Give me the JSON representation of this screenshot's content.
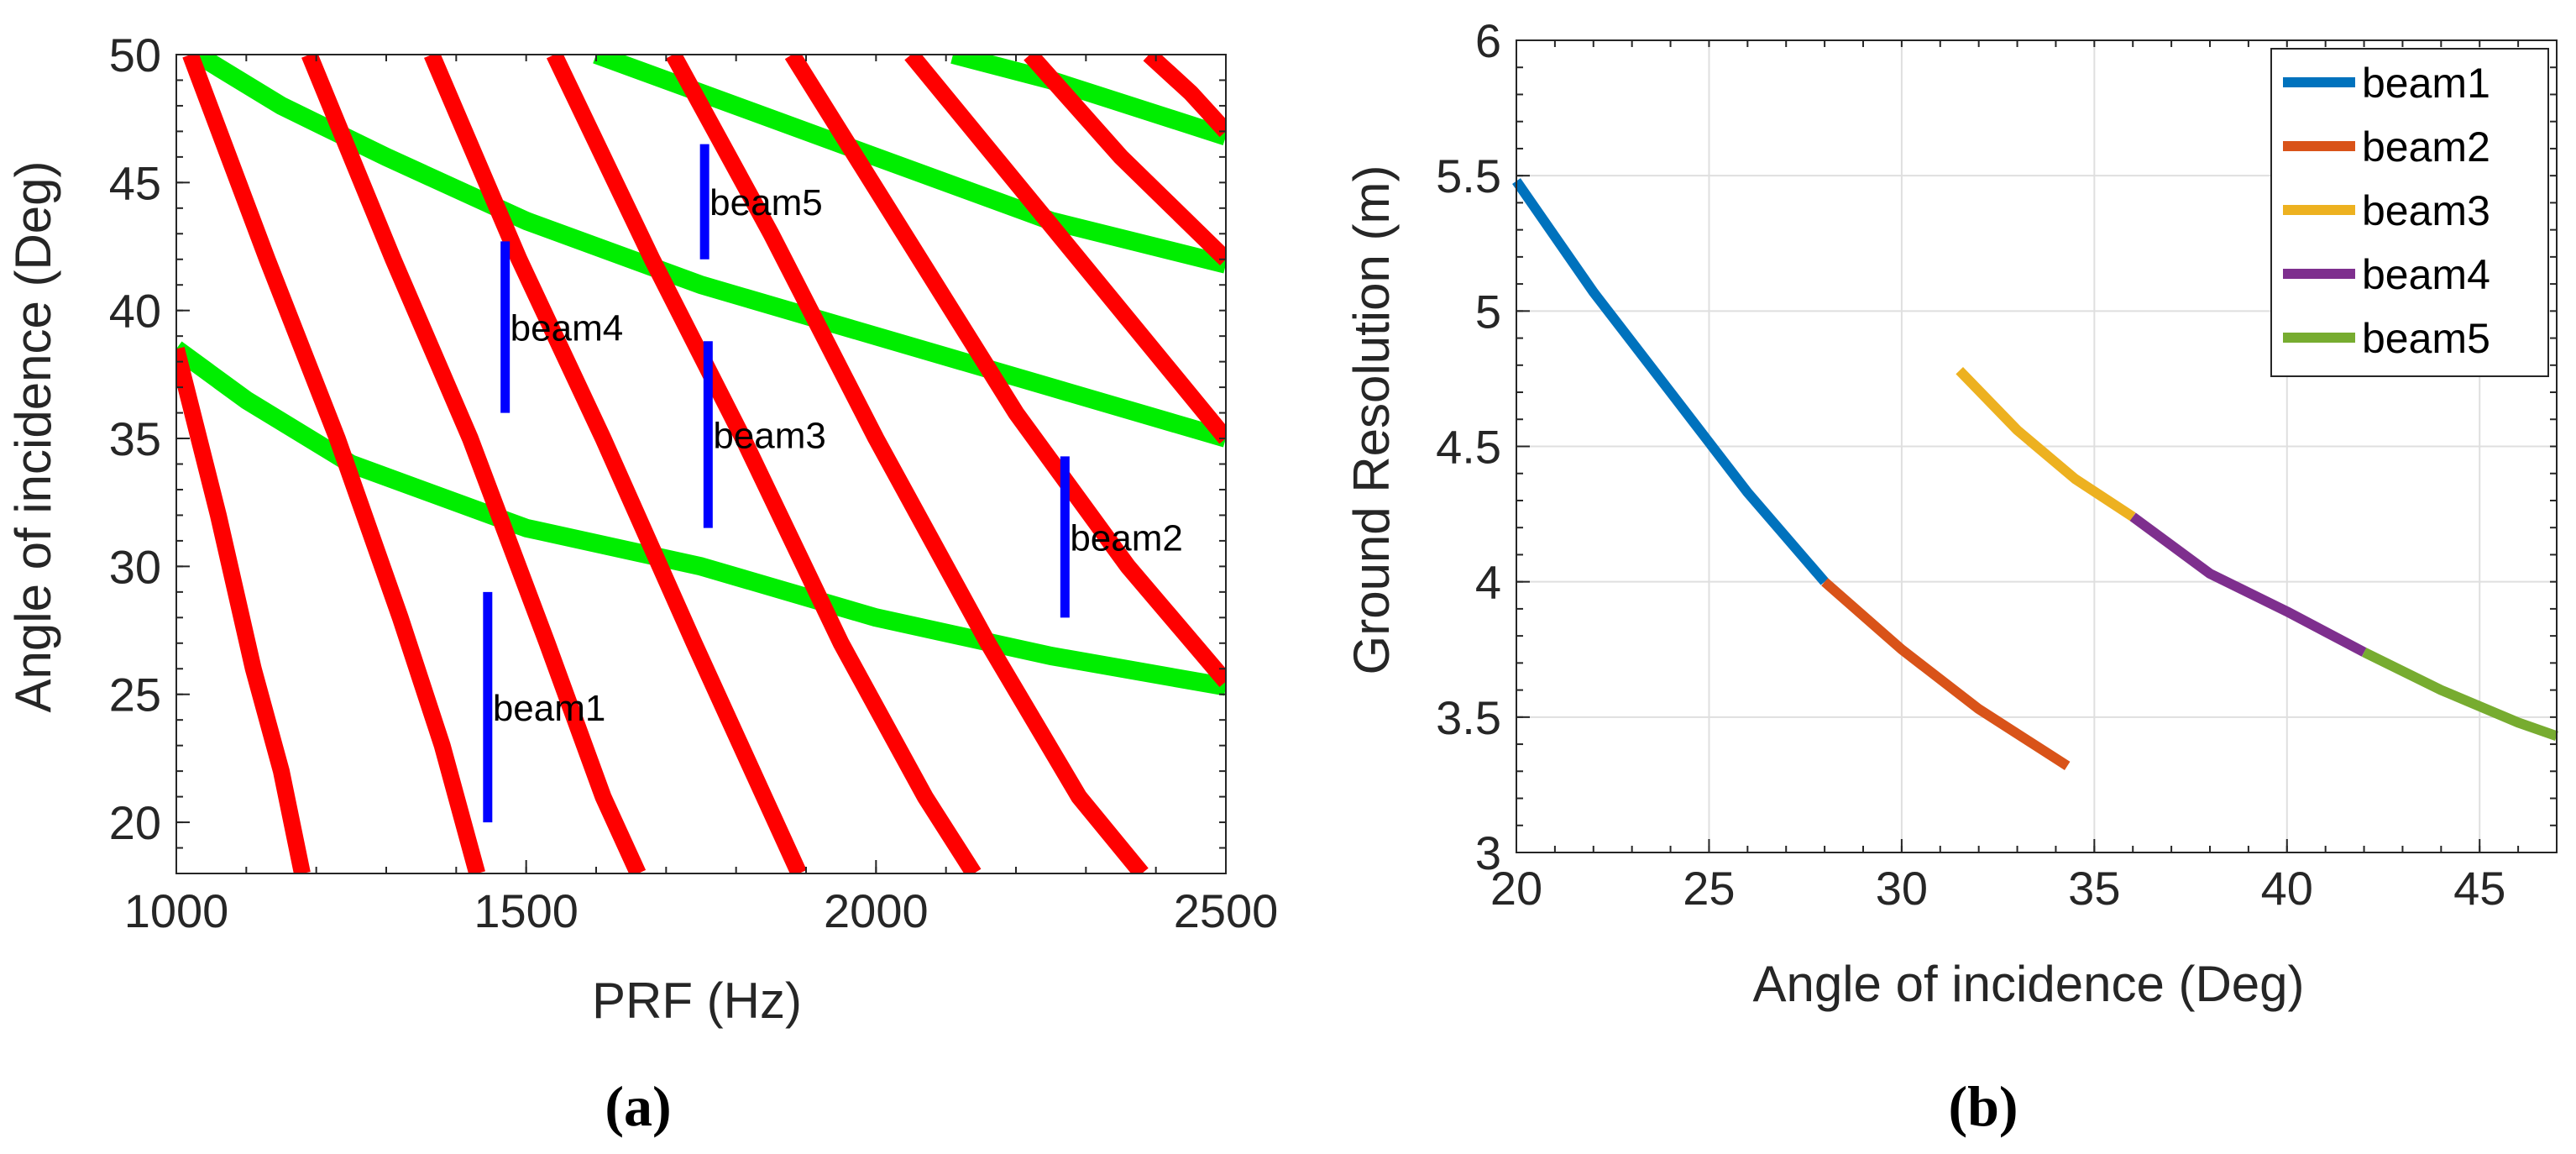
{
  "chart_data": [
    {
      "type": "line",
      "panel_label": "(a)",
      "xlabel": "PRF (Hz)",
      "ylabel": "Angle of incidence (Deg)",
      "xlim": [
        1000,
        2500
      ],
      "ylim": [
        18,
        50
      ],
      "xticks": [
        1000,
        1500,
        2000,
        2500
      ],
      "yticks": [
        20,
        25,
        30,
        35,
        40,
        45,
        50
      ],
      "colors": {
        "red": "#ff0000",
        "green": "#00ee00",
        "blue": "#0000ff"
      },
      "red_curves": [
        {
          "name": "red-curve-1",
          "points": [
            [
              1000,
              38.5
            ],
            [
              1060,
              32
            ],
            [
              1110,
              26
            ],
            [
              1150,
              22
            ],
            [
              1180,
              18
            ]
          ]
        },
        {
          "name": "red-curve-2",
          "points": [
            [
              1020,
              50
            ],
            [
              1130,
              42
            ],
            [
              1230,
              35
            ],
            [
              1320,
              28
            ],
            [
              1380,
              23
            ],
            [
              1430,
              18
            ]
          ]
        },
        {
          "name": "red-curve-3",
          "points": [
            [
              1190,
              50
            ],
            [
              1310,
              42
            ],
            [
              1420,
              35
            ],
            [
              1530,
              27
            ],
            [
              1610,
              21
            ],
            [
              1660,
              18
            ]
          ]
        },
        {
          "name": "red-curve-4",
          "points": [
            [
              1365,
              50
            ],
            [
              1490,
              42
            ],
            [
              1610,
              35
            ],
            [
              1740,
              27
            ],
            [
              1840,
              21
            ],
            [
              1890,
              18
            ]
          ]
        },
        {
          "name": "red-curve-5",
          "points": [
            [
              1540,
              50
            ],
            [
              1680,
              42
            ],
            [
              1810,
              35
            ],
            [
              1950,
              27
            ],
            [
              2070,
              21
            ],
            [
              2140,
              18
            ]
          ]
        },
        {
          "name": "red-curve-6",
          "points": [
            [
              1710,
              50
            ],
            [
              1850,
              43
            ],
            [
              2000,
              35
            ],
            [
              2160,
              27
            ],
            [
              2290,
              21
            ],
            [
              2380,
              18
            ]
          ]
        },
        {
          "name": "red-curve-7",
          "points": [
            [
              1880,
              50
            ],
            [
              2040,
              43
            ],
            [
              2200,
              36
            ],
            [
              2360,
              30
            ],
            [
              2500,
              25.5
            ]
          ]
        },
        {
          "name": "red-curve-8",
          "points": [
            [
              2050,
              50
            ],
            [
              2200,
              45
            ],
            [
              2350,
              40
            ],
            [
              2500,
              35
            ]
          ]
        },
        {
          "name": "red-curve-9",
          "points": [
            [
              2220,
              50
            ],
            [
              2350,
              46
            ],
            [
              2500,
              42
            ]
          ]
        },
        {
          "name": "red-curve-10",
          "points": [
            [
              2390,
              50
            ],
            [
              2450,
              48.5
            ],
            [
              2500,
              47
            ]
          ]
        }
      ],
      "green_curves": [
        {
          "name": "green-curve-1",
          "points": [
            [
              1000,
              38.5
            ],
            [
              1100,
              36.5
            ],
            [
              1250,
              34
            ],
            [
              1500,
              31.5
            ],
            [
              1750,
              30
            ],
            [
              2000,
              28
            ],
            [
              2250,
              26.5
            ],
            [
              2500,
              25.3
            ]
          ]
        },
        {
          "name": "green-curve-2",
          "points": [
            [
              1030,
              50
            ],
            [
              1150,
              48
            ],
            [
              1300,
              46
            ],
            [
              1500,
              43.5
            ],
            [
              1750,
              41
            ],
            [
              2000,
              39
            ],
            [
              2250,
              37
            ],
            [
              2500,
              35
            ]
          ]
        },
        {
          "name": "green-curve-3",
          "points": [
            [
              1600,
              50
            ],
            [
              1750,
              48.5
            ],
            [
              2000,
              46
            ],
            [
              2250,
              43.5
            ],
            [
              2500,
              41.8
            ]
          ]
        },
        {
          "name": "green-curve-4",
          "points": [
            [
              2110,
              50
            ],
            [
              2250,
              49
            ],
            [
              2500,
              46.8
            ]
          ]
        }
      ],
      "beams": [
        {
          "label": "beam1",
          "prf": 1445,
          "from": 20,
          "to": 29
        },
        {
          "label": "beam2",
          "prf": 2270,
          "from": 28,
          "to": 34.3
        },
        {
          "label": "beam3",
          "prf": 1760,
          "from": 31.5,
          "to": 38.8
        },
        {
          "label": "beam4",
          "prf": 1470,
          "from": 36,
          "to": 42.7
        },
        {
          "label": "beam5",
          "prf": 1755,
          "from": 42,
          "to": 46.5
        }
      ]
    },
    {
      "type": "line",
      "panel_label": "(b)",
      "xlabel": "Angle of incidence (Deg)",
      "ylabel": "Ground Resolution (m)",
      "xlim": [
        20,
        47
      ],
      "ylim": [
        3,
        6
      ],
      "xticks": [
        20,
        25,
        30,
        35,
        40,
        45
      ],
      "yticks": [
        3,
        3.5,
        4,
        4.5,
        5,
        5.5,
        6
      ],
      "grid": true,
      "legend": "top-right",
      "series": [
        {
          "name": "beam1",
          "color": "#0072bd",
          "x": [
            20,
            22,
            24,
            26,
            28
          ],
          "y": [
            5.48,
            5.07,
            4.7,
            4.33,
            4.0
          ]
        },
        {
          "name": "beam2",
          "color": "#d95319",
          "x": [
            28,
            30,
            32,
            34.3
          ],
          "y": [
            4.0,
            3.75,
            3.53,
            3.32
          ]
        },
        {
          "name": "beam3",
          "color": "#edb120",
          "x": [
            31.5,
            33,
            34.5,
            36
          ],
          "y": [
            4.78,
            4.56,
            4.38,
            4.24
          ]
        },
        {
          "name": "beam4",
          "color": "#7e2f8e",
          "x": [
            36,
            38,
            40,
            42
          ],
          "y": [
            4.24,
            4.03,
            3.89,
            3.74
          ]
        },
        {
          "name": "beam5",
          "color": "#77ac30",
          "x": [
            42,
            44,
            46,
            47
          ],
          "y": [
            3.74,
            3.6,
            3.48,
            3.43
          ]
        }
      ]
    }
  ]
}
